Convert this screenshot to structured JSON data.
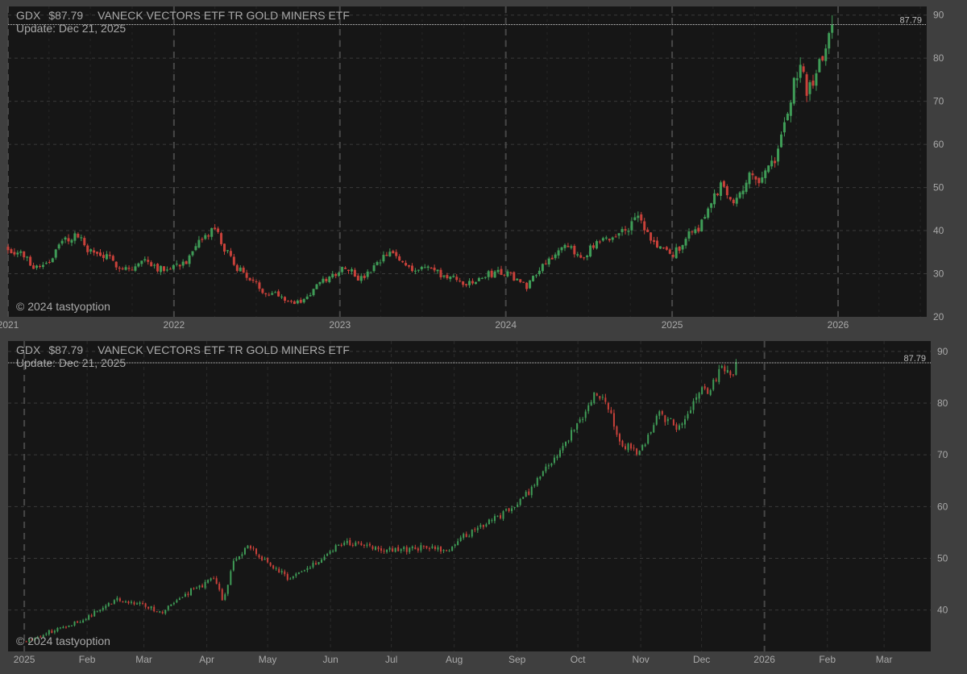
{
  "header": {
    "ticker": "GDX",
    "price": "$87.79",
    "name": "VANECK VECTORS ETF TR GOLD MINERS ETF",
    "update": "Update: Dec 21, 2025",
    "last_label": "87.79",
    "copyright": "© 2024 tastyoption"
  },
  "colors": {
    "background": "#3f3f3f",
    "plot_bg": "#161616",
    "up": "#3f9c57",
    "down": "#c8413a",
    "text": "#a9a9a9",
    "grid": "#3a3a3a"
  },
  "chart_data": [
    {
      "type": "candlestick",
      "title": "GDX $87.79 VANECK VECTORS ETF TR GOLD MINERS ETF",
      "subtitle": "Update: Dec 21, 2025",
      "x_axis": {
        "type": "date",
        "range": [
          "2021-01-01",
          "2026-07-15"
        ],
        "tick_labels": [
          "2021",
          "2022",
          "2023",
          "2024",
          "2025",
          "2026"
        ],
        "tick_dates": [
          "2021-01-01",
          "2022-01-01",
          "2023-01-01",
          "2024-01-01",
          "2025-01-01",
          "2026-01-01"
        ]
      },
      "y_axis": {
        "side": "right",
        "range": [
          20,
          92
        ],
        "ticks": [
          20,
          30,
          40,
          50,
          60,
          70,
          80,
          90
        ]
      },
      "last_price": 87.79,
      "grid": true,
      "bar_interval": "weekly",
      "close_path": [
        [
          "2021-01-01",
          36
        ],
        [
          "2021-02-01",
          34.5
        ],
        [
          "2021-03-01",
          31.5
        ],
        [
          "2021-04-01",
          33
        ],
        [
          "2021-05-01",
          37.5
        ],
        [
          "2021-06-01",
          39
        ],
        [
          "2021-07-01",
          35
        ],
        [
          "2021-08-01",
          34
        ],
        [
          "2021-09-01",
          32
        ],
        [
          "2021-10-01",
          31
        ],
        [
          "2021-11-01",
          33.5
        ],
        [
          "2021-12-01",
          31
        ],
        [
          "2022-01-01",
          32
        ],
        [
          "2022-02-01",
          33
        ],
        [
          "2022-03-01",
          37.5
        ],
        [
          "2022-04-01",
          40.5
        ],
        [
          "2022-04-20",
          36
        ],
        [
          "2022-05-15",
          32
        ],
        [
          "2022-06-15",
          29
        ],
        [
          "2022-07-15",
          26
        ],
        [
          "2022-08-15",
          25.5
        ],
        [
          "2022-09-25",
          23
        ],
        [
          "2022-10-20",
          24.5
        ],
        [
          "2022-11-15",
          27.5
        ],
        [
          "2022-12-15",
          29.5
        ],
        [
          "2023-01-15",
          32
        ],
        [
          "2023-02-15",
          28.5
        ],
        [
          "2023-03-15",
          31
        ],
        [
          "2023-04-20",
          35
        ],
        [
          "2023-05-15",
          33
        ],
        [
          "2023-06-15",
          31
        ],
        [
          "2023-07-15",
          31.5
        ],
        [
          "2023-08-15",
          29.5
        ],
        [
          "2023-09-15",
          28.5
        ],
        [
          "2023-10-15",
          27.5
        ],
        [
          "2023-11-15",
          29.5
        ],
        [
          "2023-12-15",
          30.5
        ],
        [
          "2024-01-15",
          29.5
        ],
        [
          "2024-02-15",
          27
        ],
        [
          "2024-03-15",
          31.5
        ],
        [
          "2024-04-15",
          34.5
        ],
        [
          "2024-05-15",
          36
        ],
        [
          "2024-06-15",
          34
        ],
        [
          "2024-07-15",
          36.5
        ],
        [
          "2024-08-15",
          38
        ],
        [
          "2024-09-15",
          40
        ],
        [
          "2024-10-20",
          43
        ],
        [
          "2024-11-15",
          37.5
        ],
        [
          "2024-12-15",
          35.5
        ],
        [
          "2025-01-01",
          34
        ],
        [
          "2025-02-01",
          38.5
        ],
        [
          "2025-03-01",
          41
        ],
        [
          "2025-04-01",
          47
        ],
        [
          "2025-04-20",
          51
        ],
        [
          "2025-05-15",
          47
        ],
        [
          "2025-06-15",
          52
        ],
        [
          "2025-07-15",
          52.5
        ],
        [
          "2025-08-15",
          56
        ],
        [
          "2025-09-15",
          69
        ],
        [
          "2025-10-10",
          79
        ],
        [
          "2025-10-25",
          72
        ],
        [
          "2025-11-10",
          74
        ],
        [
          "2025-11-25",
          80
        ],
        [
          "2025-12-19",
          87.79
        ]
      ]
    },
    {
      "type": "candlestick",
      "title": "GDX $87.79 VANECK VECTORS ETF TR GOLD MINERS ETF",
      "subtitle": "Update: Dec 21, 2025",
      "x_axis": {
        "type": "date",
        "range": [
          "2024-12-24",
          "2026-03-24"
        ],
        "tick_labels": [
          "2025",
          "Feb",
          "Mar",
          "Apr",
          "May",
          "Jun",
          "Jul",
          "Aug",
          "Sep",
          "Oct",
          "Nov",
          "Dec",
          "2026",
          "Feb",
          "Mar"
        ],
        "tick_dates": [
          "2025-01-01",
          "2025-02-01",
          "2025-03-01",
          "2025-04-01",
          "2025-05-01",
          "2025-06-01",
          "2025-07-01",
          "2025-08-01",
          "2025-09-01",
          "2025-10-01",
          "2025-11-01",
          "2025-12-01",
          "2026-01-01",
          "2026-02-01",
          "2026-03-01"
        ]
      },
      "y_axis": {
        "side": "right",
        "range": [
          32,
          92
        ],
        "ticks": [
          40,
          50,
          60,
          70,
          80,
          90
        ]
      },
      "last_price": 87.79,
      "grid": true,
      "bar_interval": "daily",
      "close_path": [
        [
          "2025-01-02",
          34
        ],
        [
          "2025-01-15",
          36
        ],
        [
          "2025-02-01",
          38.5
        ],
        [
          "2025-02-15",
          42
        ],
        [
          "2025-03-01",
          41
        ],
        [
          "2025-03-10",
          39.5
        ],
        [
          "2025-03-25",
          44
        ],
        [
          "2025-04-05",
          46
        ],
        [
          "2025-04-09",
          41.5
        ],
        [
          "2025-04-14",
          49
        ],
        [
          "2025-04-22",
          52.5
        ],
        [
          "2025-05-01",
          49
        ],
        [
          "2025-05-12",
          46
        ],
        [
          "2025-05-25",
          49
        ],
        [
          "2025-06-05",
          53
        ],
        [
          "2025-06-20",
          52.5
        ],
        [
          "2025-07-01",
          51.5
        ],
        [
          "2025-07-15",
          52
        ],
        [
          "2025-07-30",
          51.5
        ],
        [
          "2025-08-05",
          54
        ],
        [
          "2025-08-20",
          57.5
        ],
        [
          "2025-09-01",
          60
        ],
        [
          "2025-09-15",
          67
        ],
        [
          "2025-10-01",
          76
        ],
        [
          "2025-10-10",
          82
        ],
        [
          "2025-10-15",
          80
        ],
        [
          "2025-10-22",
          72
        ],
        [
          "2025-11-01",
          70.5
        ],
        [
          "2025-11-10",
          78
        ],
        [
          "2025-11-20",
          75
        ],
        [
          "2025-12-01",
          83
        ],
        [
          "2025-12-05",
          82
        ],
        [
          "2025-12-10",
          86.5
        ],
        [
          "2025-12-15",
          85.5
        ],
        [
          "2025-12-19",
          87.79
        ]
      ]
    }
  ]
}
